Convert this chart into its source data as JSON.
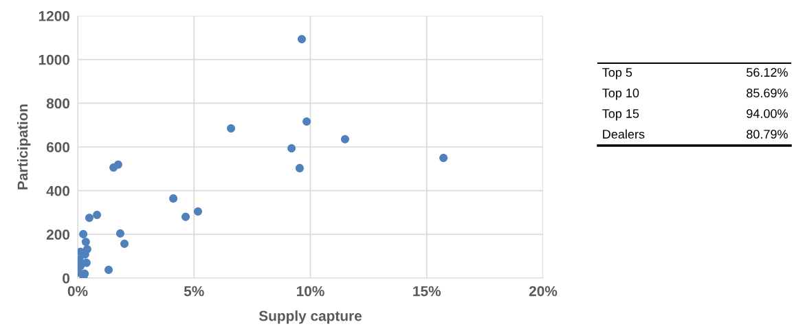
{
  "chart_data": {
    "type": "scatter",
    "xlabel": "Supply capture",
    "ylabel": "Participation",
    "x": [
      9.63,
      6.59,
      9.84,
      9.19,
      9.54,
      11.49,
      15.72,
      1.54,
      1.74,
      4.11,
      4.64,
      5.17,
      0.5,
      0.83,
      0.24,
      0.35,
      1.83,
      2.01,
      1.33,
      0.41,
      0.12,
      0.32,
      0.08,
      0.38,
      0.12,
      0.3,
      0.05,
      0.25
    ],
    "values": [
      1093,
      685,
      716,
      594,
      503,
      635,
      550,
      506,
      519,
      364,
      280,
      305,
      276,
      289,
      201,
      166,
      204,
      157,
      38,
      132,
      120,
      108,
      85,
      70,
      55,
      20,
      25,
      2
    ],
    "color": "#4f81bd",
    "marker": "circle",
    "grid": true,
    "xlim": [
      0,
      20
    ],
    "xticks": [
      {
        "value": 0,
        "label": "0%"
      },
      {
        "value": 5,
        "label": "5%"
      },
      {
        "value": 10,
        "label": "10%"
      },
      {
        "value": 15,
        "label": "15%"
      },
      {
        "value": 20,
        "label": "20%"
      }
    ],
    "ylim": [
      0,
      1200
    ],
    "yticks": [
      0,
      200,
      400,
      600,
      800,
      1000,
      1200
    ],
    "annotations": [
      "Top 5\t56.12%",
      "Top 10\t85.69%",
      "Top 15\t94.00%",
      "Dealers\t80.79%"
    ]
  }
}
